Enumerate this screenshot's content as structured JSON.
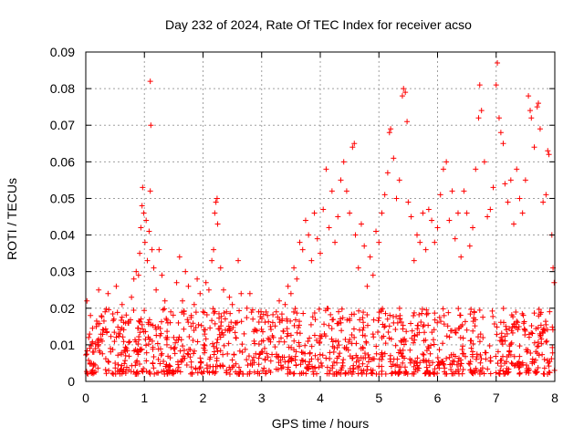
{
  "chart_data": {
    "type": "scatter",
    "title": "Day 232 of 2024, Rate Of TEC Index for receiver acso",
    "xlabel": "GPS time / hours",
    "ylabel": "ROTI / TECUs",
    "xlim": [
      0,
      8
    ],
    "ylim": [
      0,
      0.09
    ],
    "grid": true,
    "legend": "none",
    "marker": "plus",
    "color": "#ff0000",
    "x_ticks": [
      0,
      1,
      2,
      3,
      4,
      5,
      6,
      7,
      8
    ],
    "x_tick_labels": [
      "0",
      "1",
      "2",
      "3",
      "4",
      "5",
      "6",
      "7",
      "8"
    ],
    "y_ticks": [
      0,
      0.01,
      0.02,
      0.03,
      0.04,
      0.05,
      0.06,
      0.07,
      0.08,
      0.09
    ],
    "y_tick_labels": [
      "0",
      "0.01",
      "0.02",
      "0.03",
      "0.04",
      "0.05",
      "0.06",
      "0.07",
      "0.08",
      "0.09"
    ],
    "series": [
      {
        "name": "ROTI",
        "points": [
          [
            0.02,
            0.022
          ],
          [
            0.05,
            0.012
          ],
          [
            0.08,
            0.018
          ],
          [
            0.12,
            0.008
          ],
          [
            0.18,
            0.015
          ],
          [
            0.22,
            0.025
          ],
          [
            0.28,
            0.011
          ],
          [
            0.33,
            0.019
          ],
          [
            0.38,
            0.024
          ],
          [
            0.42,
            0.009
          ],
          [
            0.48,
            0.017
          ],
          [
            0.52,
            0.026
          ],
          [
            0.58,
            0.013
          ],
          [
            0.62,
            0.021
          ],
          [
            0.68,
            0.007
          ],
          [
            0.72,
            0.016
          ],
          [
            0.78,
            0.023
          ],
          [
            0.82,
            0.028
          ],
          [
            0.86,
            0.03
          ],
          [
            0.9,
            0.029
          ],
          [
            0.92,
            0.035
          ],
          [
            0.94,
            0.042
          ],
          [
            0.96,
            0.048
          ],
          [
            0.97,
            0.053
          ],
          [
            0.99,
            0.046
          ],
          [
            1.01,
            0.038
          ],
          [
            1.03,
            0.044
          ],
          [
            1.05,
            0.033
          ],
          [
            1.08,
            0.041
          ],
          [
            1.1,
            0.052
          ],
          [
            1.1,
            0.082
          ],
          [
            1.11,
            0.07
          ],
          [
            1.13,
            0.036
          ],
          [
            1.16,
            0.031
          ],
          [
            1.2,
            0.025
          ],
          [
            1.25,
            0.036
          ],
          [
            1.3,
            0.029
          ],
          [
            1.35,
            0.022
          ],
          [
            1.4,
            0.016
          ],
          [
            1.45,
            0.019
          ],
          [
            1.5,
            0.012
          ],
          [
            1.55,
            0.027
          ],
          [
            1.6,
            0.034
          ],
          [
            1.65,
            0.022
          ],
          [
            1.7,
            0.03
          ],
          [
            1.75,
            0.026
          ],
          [
            1.8,
            0.018
          ],
          [
            1.85,
            0.021
          ],
          [
            1.9,
            0.028
          ],
          [
            1.95,
            0.024
          ],
          [
            2.0,
            0.019
          ],
          [
            2.05,
            0.027
          ],
          [
            2.1,
            0.025
          ],
          [
            2.15,
            0.033
          ],
          [
            2.18,
            0.036
          ],
          [
            2.2,
            0.046
          ],
          [
            2.22,
            0.049
          ],
          [
            2.24,
            0.05
          ],
          [
            2.25,
            0.043
          ],
          [
            2.3,
            0.031
          ],
          [
            2.35,
            0.025
          ],
          [
            2.4,
            0.019
          ],
          [
            2.45,
            0.023
          ],
          [
            2.5,
            0.021
          ],
          [
            2.55,
            0.016
          ],
          [
            2.6,
            0.033
          ],
          [
            2.65,
            0.024
          ],
          [
            2.7,
            0.013
          ],
          [
            2.75,
            0.02
          ],
          [
            2.8,
            0.024
          ],
          [
            2.85,
            0.017
          ],
          [
            2.9,
            0.014
          ],
          [
            2.95,
            0.019
          ],
          [
            3.0,
            0.011
          ],
          [
            3.02,
            0.003
          ],
          [
            3.05,
            0.009
          ],
          [
            3.1,
            0.018
          ],
          [
            3.15,
            0.015
          ],
          [
            3.2,
            0.012
          ],
          [
            3.25,
            0.019
          ],
          [
            3.3,
            0.022
          ],
          [
            3.35,
            0.017
          ],
          [
            3.4,
            0.021
          ],
          [
            3.45,
            0.026
          ],
          [
            3.5,
            0.024
          ],
          [
            3.55,
            0.031
          ],
          [
            3.6,
            0.028
          ],
          [
            3.65,
            0.038
          ],
          [
            3.7,
            0.036
          ],
          [
            3.75,
            0.044
          ],
          [
            3.8,
            0.04
          ],
          [
            3.85,
            0.033
          ],
          [
            3.9,
            0.046
          ],
          [
            3.95,
            0.039
          ],
          [
            4.0,
            0.035
          ],
          [
            4.05,
            0.047
          ],
          [
            4.1,
            0.058
          ],
          [
            4.15,
            0.042
          ],
          [
            4.2,
            0.052
          ],
          [
            4.25,
            0.038
          ],
          [
            4.3,
            0.045
          ],
          [
            4.35,
            0.055
          ],
          [
            4.4,
            0.06
          ],
          [
            4.45,
            0.052
          ],
          [
            4.5,
            0.046
          ],
          [
            4.55,
            0.064
          ],
          [
            4.58,
            0.065
          ],
          [
            4.6,
            0.04
          ],
          [
            4.65,
            0.031
          ],
          [
            4.7,
            0.043
          ],
          [
            4.75,
            0.037
          ],
          [
            4.8,
            0.026
          ],
          [
            4.85,
            0.034
          ],
          [
            4.9,
            0.029
          ],
          [
            4.95,
            0.041
          ],
          [
            5.0,
            0.038
          ],
          [
            5.05,
            0.046
          ],
          [
            5.1,
            0.051
          ],
          [
            5.15,
            0.057
          ],
          [
            5.18,
            0.068
          ],
          [
            5.2,
            0.069
          ],
          [
            5.25,
            0.061
          ],
          [
            5.3,
            0.05
          ],
          [
            5.35,
            0.055
          ],
          [
            5.4,
            0.078
          ],
          [
            5.42,
            0.08
          ],
          [
            5.45,
            0.079
          ],
          [
            5.48,
            0.071
          ],
          [
            5.5,
            0.049
          ],
          [
            5.55,
            0.045
          ],
          [
            5.6,
            0.033
          ],
          [
            5.65,
            0.04
          ],
          [
            5.7,
            0.038
          ],
          [
            5.75,
            0.046
          ],
          [
            5.8,
            0.036
          ],
          [
            5.85,
            0.047
          ],
          [
            5.9,
            0.044
          ],
          [
            5.95,
            0.038
          ],
          [
            6.0,
            0.042
          ],
          [
            6.05,
            0.051
          ],
          [
            6.1,
            0.058
          ],
          [
            6.15,
            0.06
          ],
          [
            6.2,
            0.044
          ],
          [
            6.25,
            0.052
          ],
          [
            6.3,
            0.039
          ],
          [
            6.35,
            0.046
          ],
          [
            6.4,
            0.034
          ],
          [
            6.45,
            0.052
          ],
          [
            6.5,
            0.046
          ],
          [
            6.55,
            0.037
          ],
          [
            6.6,
            0.042
          ],
          [
            6.65,
            0.058
          ],
          [
            6.7,
            0.072
          ],
          [
            6.72,
            0.081
          ],
          [
            6.75,
            0.074
          ],
          [
            6.8,
            0.06
          ],
          [
            6.85,
            0.045
          ],
          [
            6.9,
            0.047
          ],
          [
            6.95,
            0.053
          ],
          [
            7.0,
            0.081
          ],
          [
            7.02,
            0.087
          ],
          [
            7.05,
            0.072
          ],
          [
            7.08,
            0.068
          ],
          [
            7.12,
            0.065
          ],
          [
            7.15,
            0.054
          ],
          [
            7.2,
            0.049
          ],
          [
            7.25,
            0.055
          ],
          [
            7.3,
            0.043
          ],
          [
            7.35,
            0.058
          ],
          [
            7.4,
            0.05
          ],
          [
            7.45,
            0.046
          ],
          [
            7.5,
            0.055
          ],
          [
            7.55,
            0.078
          ],
          [
            7.58,
            0.074
          ],
          [
            7.6,
            0.072
          ],
          [
            7.65,
            0.064
          ],
          [
            7.7,
            0.075
          ],
          [
            7.72,
            0.076
          ],
          [
            7.75,
            0.069
          ],
          [
            7.8,
            0.049
          ],
          [
            7.85,
            0.051
          ],
          [
            7.88,
            0.063
          ],
          [
            7.9,
            0.062
          ],
          [
            7.95,
            0.04
          ],
          [
            7.97,
            0.031
          ],
          [
            7.99,
            0.027
          ]
        ],
        "baseline_band": {
          "note": "dense cluster of additional points spanning the full time range",
          "x_range": [
            0,
            8
          ],
          "y_range": [
            0.002,
            0.02
          ],
          "count": 1200
        }
      }
    ]
  }
}
